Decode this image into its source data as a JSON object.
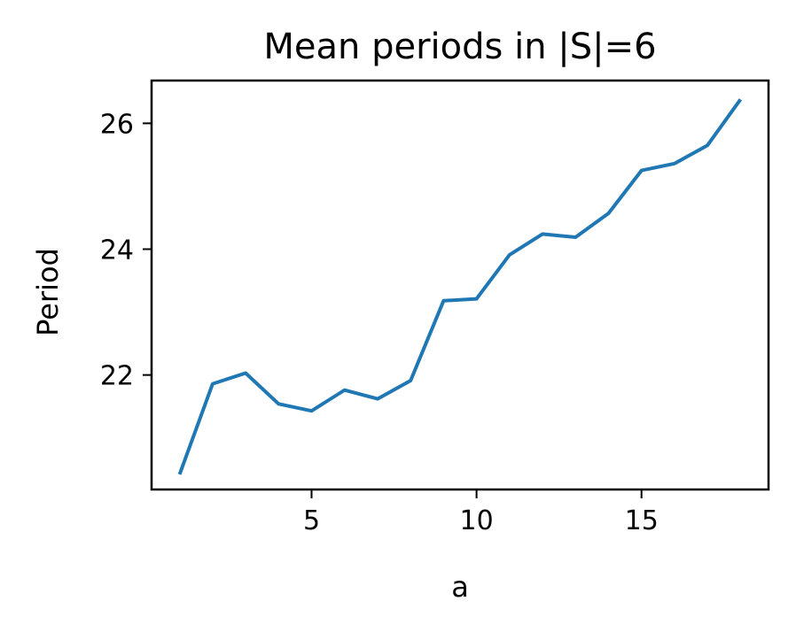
{
  "chart_data": {
    "type": "line",
    "title": "Mean periods in |S|=6",
    "xlabel": "a",
    "ylabel": "Period",
    "xlim": [
      0.15,
      18.85
    ],
    "ylim": [
      20.18,
      26.68
    ],
    "xticks": [
      5,
      10,
      15
    ],
    "xtick_labels": [
      "5",
      "10",
      "15"
    ],
    "yticks": [
      22,
      24,
      26
    ],
    "ytick_labels": [
      "22",
      "24",
      "26"
    ],
    "grid": false,
    "legend": null,
    "series": [
      {
        "color": "#1f77b4",
        "x": [
          1,
          2,
          3,
          4,
          5,
          6,
          7,
          8,
          9,
          10,
          11,
          12,
          13,
          14,
          15,
          16,
          17,
          18
        ],
        "values": [
          20.42,
          21.86,
          22.03,
          21.54,
          21.43,
          21.76,
          21.62,
          21.91,
          23.18,
          23.21,
          23.91,
          24.24,
          24.19,
          24.57,
          25.25,
          25.36,
          25.65,
          26.38
        ]
      }
    ]
  }
}
